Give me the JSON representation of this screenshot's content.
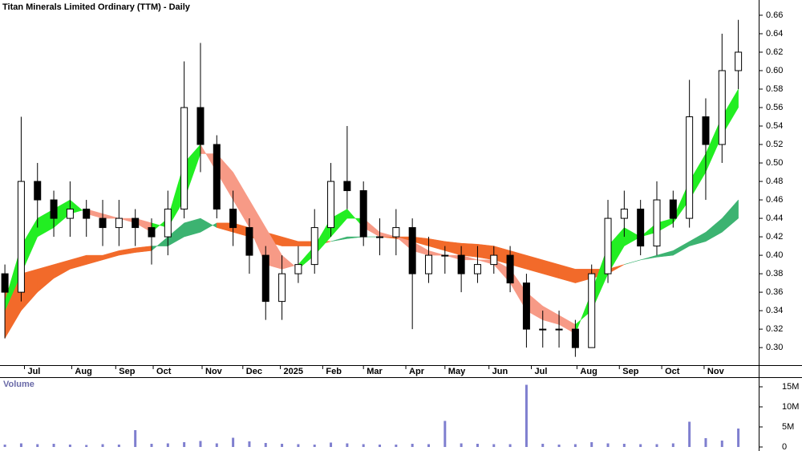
{
  "chart_data": {
    "type": "candlestick",
    "title": "Titan Minerals Limited Ordinary (TTM) - Daily",
    "xlim": [
      -0.3,
      46.2
    ],
    "xticks": [
      {
        "value": 1.2,
        "label": "Jul"
      },
      {
        "value": 4.1,
        "label": "Aug"
      },
      {
        "value": 6.8,
        "label": "Sep"
      },
      {
        "value": 9.1,
        "label": "Oct"
      },
      {
        "value": 12.1,
        "label": "Nov"
      },
      {
        "value": 14.6,
        "label": "Dec"
      },
      {
        "value": 16.9,
        "label": "2025"
      },
      {
        "value": 19.5,
        "label": "Feb"
      },
      {
        "value": 22.0,
        "label": "Mar"
      },
      {
        "value": 24.6,
        "label": "Apr"
      },
      {
        "value": 27.0,
        "label": "May"
      },
      {
        "value": 29.7,
        "label": "Jun"
      },
      {
        "value": 32.3,
        "label": "Jul"
      },
      {
        "value": 35.1,
        "label": "Aug"
      },
      {
        "value": 37.7,
        "label": "Sep"
      },
      {
        "value": 40.3,
        "label": "Oct"
      },
      {
        "value": 42.9,
        "label": "Nov"
      }
    ],
    "ylim": [
      0.281,
      0.6765
    ],
    "yticks": [
      {
        "value": 0.3,
        "label": "0.30"
      },
      {
        "value": 0.32,
        "label": "0.32"
      },
      {
        "value": 0.34,
        "label": "0.34"
      },
      {
        "value": 0.36,
        "label": "0.36"
      },
      {
        "value": 0.38,
        "label": "0.38"
      },
      {
        "value": 0.4,
        "label": "0.40"
      },
      {
        "value": 0.42,
        "label": "0.42"
      },
      {
        "value": 0.44,
        "label": "0.44"
      },
      {
        "value": 0.46,
        "label": "0.46"
      },
      {
        "value": 0.48,
        "label": "0.48"
      },
      {
        "value": 0.5,
        "label": "0.50"
      },
      {
        "value": 0.52,
        "label": "0.52"
      },
      {
        "value": 0.54,
        "label": "0.54"
      },
      {
        "value": 0.56,
        "label": "0.56"
      },
      {
        "value": 0.58,
        "label": "0.58"
      },
      {
        "value": 0.6,
        "label": "0.60"
      },
      {
        "value": 0.62,
        "label": "0.62"
      },
      {
        "value": 0.64,
        "label": "0.64"
      },
      {
        "value": 0.66,
        "label": "0.66"
      }
    ],
    "open": [
      0.38,
      0.36,
      0.48,
      0.46,
      0.44,
      0.45,
      0.44,
      0.43,
      0.44,
      0.43,
      0.42,
      0.45,
      0.56,
      0.52,
      0.45,
      0.43,
      0.4,
      0.35,
      0.38,
      0.39,
      0.43,
      0.48,
      0.47,
      0.42,
      0.42,
      0.43,
      0.38,
      0.4,
      0.4,
      0.38,
      0.39,
      0.4,
      0.37,
      0.32,
      0.32,
      0.32,
      0.3,
      0.38,
      0.44,
      0.45,
      0.41,
      0.46,
      0.44,
      0.55,
      0.52,
      0.6
    ],
    "high": [
      0.39,
      0.55,
      0.5,
      0.47,
      0.48,
      0.46,
      0.46,
      0.46,
      0.45,
      0.44,
      0.47,
      0.61,
      0.63,
      0.53,
      0.47,
      0.44,
      0.41,
      0.4,
      0.41,
      0.45,
      0.5,
      0.54,
      0.48,
      0.44,
      0.45,
      0.44,
      0.42,
      0.41,
      0.41,
      0.41,
      0.41,
      0.41,
      0.38,
      0.34,
      0.34,
      0.33,
      0.39,
      0.46,
      0.47,
      0.46,
      0.48,
      0.47,
      0.59,
      0.57,
      0.64,
      0.655
    ],
    "low": [
      0.31,
      0.35,
      0.43,
      0.42,
      0.42,
      0.42,
      0.41,
      0.41,
      0.41,
      0.39,
      0.4,
      0.44,
      0.49,
      0.44,
      0.41,
      0.38,
      0.33,
      0.33,
      0.37,
      0.38,
      0.42,
      0.45,
      0.41,
      0.4,
      0.4,
      0.32,
      0.37,
      0.38,
      0.36,
      0.37,
      0.38,
      0.36,
      0.3,
      0.3,
      0.3,
      0.29,
      0.3,
      0.37,
      0.42,
      0.4,
      0.4,
      0.43,
      0.43,
      0.46,
      0.5,
      0.58
    ],
    "close": [
      0.36,
      0.48,
      0.46,
      0.44,
      0.45,
      0.44,
      0.43,
      0.44,
      0.43,
      0.42,
      0.45,
      0.56,
      0.52,
      0.45,
      0.43,
      0.4,
      0.35,
      0.38,
      0.39,
      0.43,
      0.48,
      0.47,
      0.42,
      0.42,
      0.43,
      0.38,
      0.4,
      0.4,
      0.38,
      0.39,
      0.4,
      0.37,
      0.32,
      0.32,
      0.32,
      0.3,
      0.38,
      0.44,
      0.45,
      0.41,
      0.46,
      0.44,
      0.55,
      0.52,
      0.6,
      0.62
    ],
    "bands": [
      {
        "up_color": "#3cb371",
        "down_color": "#f26a2a",
        "fast": [
          0.31,
          0.34,
          0.36,
          0.375,
          0.385,
          0.39,
          0.395,
          0.4,
          0.403,
          0.405,
          0.42,
          0.435,
          0.44,
          0.43,
          0.425,
          0.42,
          0.415,
          0.41,
          0.41,
          0.41,
          0.415,
          0.42,
          0.42,
          0.42,
          0.418,
          0.415,
          0.41,
          0.405,
          0.4,
          0.398,
          0.395,
          0.39,
          0.385,
          0.38,
          0.375,
          0.37,
          0.375,
          0.38,
          0.39,
          0.395,
          0.4,
          0.405,
          0.415,
          0.425,
          0.44,
          0.46
        ],
        "slow": [
          0.36,
          0.38,
          0.385,
          0.39,
          0.395,
          0.4,
          0.4,
          0.405,
          0.408,
          0.41,
          0.41,
          0.42,
          0.425,
          0.435,
          0.435,
          0.43,
          0.425,
          0.42,
          0.415,
          0.415,
          0.415,
          0.418,
          0.42,
          0.42,
          0.42,
          0.42,
          0.418,
          0.415,
          0.413,
          0.412,
          0.41,
          0.405,
          0.4,
          0.395,
          0.39,
          0.385,
          0.385,
          0.385,
          0.39,
          0.395,
          0.398,
          0.4,
          0.41,
          0.415,
          0.425,
          0.44
        ]
      },
      {
        "up_color": "#22ee22",
        "down_color": "#f79a86",
        "fast": [
          0.35,
          0.41,
          0.44,
          0.45,
          0.46,
          0.445,
          0.44,
          0.44,
          0.435,
          0.425,
          0.44,
          0.5,
          0.52,
          0.49,
          0.46,
          0.43,
          0.39,
          0.385,
          0.39,
          0.41,
          0.44,
          0.45,
          0.43,
          0.42,
          0.42,
          0.405,
          0.4,
          0.4,
          0.395,
          0.395,
          0.39,
          0.37,
          0.34,
          0.33,
          0.325,
          0.315,
          0.36,
          0.41,
          0.43,
          0.42,
          0.435,
          0.44,
          0.48,
          0.51,
          0.55,
          0.58
        ],
        "slow": [
          0.34,
          0.38,
          0.42,
          0.43,
          0.445,
          0.45,
          0.445,
          0.44,
          0.44,
          0.435,
          0.43,
          0.46,
          0.51,
          0.51,
          0.49,
          0.46,
          0.43,
          0.4,
          0.385,
          0.4,
          0.42,
          0.44,
          0.44,
          0.425,
          0.42,
          0.415,
          0.405,
          0.4,
          0.4,
          0.395,
          0.395,
          0.385,
          0.36,
          0.345,
          0.335,
          0.325,
          0.34,
          0.38,
          0.41,
          0.42,
          0.425,
          0.435,
          0.46,
          0.49,
          0.53,
          0.56
        ]
      }
    ],
    "volume": {
      "label": "Volume",
      "color": "#7f7fcf",
      "ylim": [
        -600000,
        17000000
      ],
      "yticks": [
        0,
        {
          "value": 5000000,
          "label": "5M"
        },
        {
          "value": 10000000,
          "label": "10M"
        },
        {
          "value": 15000000,
          "label": "15M"
        }
      ],
      "values": [
        600000,
        900000,
        700000,
        800000,
        600000,
        500000,
        700000,
        600000,
        4200000,
        800000,
        900000,
        1200000,
        1500000,
        900000,
        2300000,
        1400000,
        1000000,
        800000,
        700000,
        600000,
        1100000,
        900000,
        700000,
        600000,
        600000,
        800000,
        700000,
        6500000,
        900000,
        800000,
        700000,
        700000,
        15500000,
        800000,
        600000,
        700000,
        1200000,
        900000,
        800000,
        700000,
        700000,
        900000,
        6300000,
        2200000,
        1600000,
        4600000
      ]
    }
  }
}
